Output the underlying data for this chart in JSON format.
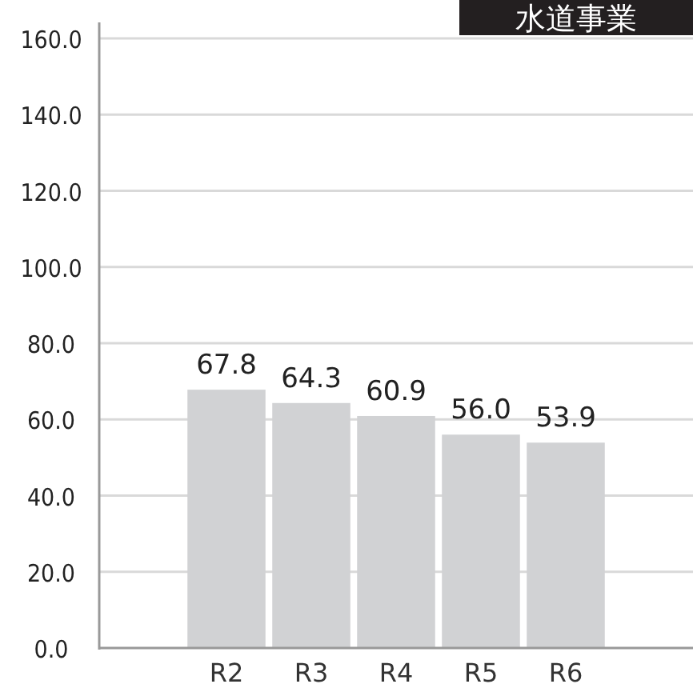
{
  "chart_data": {
    "type": "bar",
    "title": "水道事業",
    "categories": [
      "R2",
      "R3",
      "R4",
      "R5",
      "R6"
    ],
    "values": [
      67.8,
      64.3,
      60.9,
      56.0,
      53.9
    ],
    "color": "#d1d2d4",
    "ylim": [
      0,
      160
    ],
    "yticks": [
      {
        "value": 0,
        "label": "0.0"
      },
      {
        "value": 20,
        "label": "20.0"
      },
      {
        "value": 40,
        "label": "40.0"
      },
      {
        "value": 60,
        "label": "60.0"
      },
      {
        "value": 80,
        "label": "80.0"
      },
      {
        "value": 100,
        "label": "100.0"
      },
      {
        "value": 120,
        "label": "120.0"
      },
      {
        "value": 140,
        "label": "140.0"
      },
      {
        "value": 160,
        "label": "160.0"
      }
    ],
    "grid": "y",
    "value_labels": [
      "67.8",
      "64.3",
      "60.9",
      "56.0",
      "53.9"
    ]
  }
}
